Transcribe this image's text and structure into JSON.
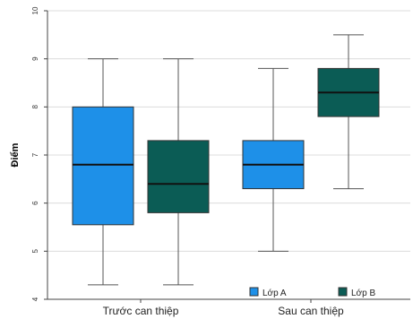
{
  "chart_data": {
    "type": "boxplot",
    "title": "",
    "xlabel": "",
    "ylabel": "Điểm",
    "ylim": [
      4,
      10
    ],
    "yticks": [
      "4",
      "5",
      "6",
      "7",
      "8",
      "9",
      "10"
    ],
    "grid": "horizontal",
    "legend_position": "bottom-right",
    "categories": [
      "Trước can thiệp",
      "Sau can thiệp"
    ],
    "series": [
      {
        "name": "Lớp A",
        "color": "#1e90e8",
        "boxes": [
          {
            "min": 4.3,
            "q1": 5.55,
            "median": 6.8,
            "q3": 8.0,
            "max": 9.0
          },
          {
            "min": 5.0,
            "q1": 6.3,
            "median": 6.8,
            "q3": 7.3,
            "max": 8.8
          }
        ]
      },
      {
        "name": "Lớp B",
        "color": "#0b5c55",
        "boxes": [
          {
            "min": 4.3,
            "q1": 5.8,
            "median": 6.4,
            "q3": 7.3,
            "max": 9.0
          },
          {
            "min": 6.3,
            "q1": 7.8,
            "median": 8.3,
            "q3": 8.8,
            "max": 9.5
          }
        ]
      }
    ]
  }
}
